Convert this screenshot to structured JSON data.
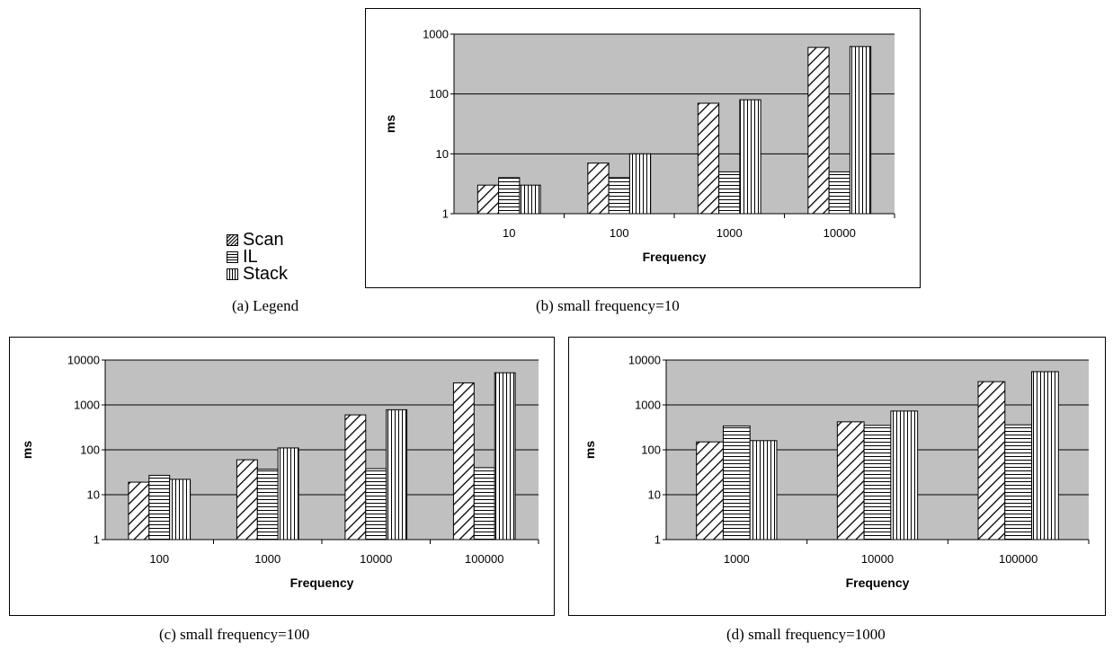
{
  "legend": {
    "items": [
      {
        "label": "Scan",
        "pattern": "diagonal"
      },
      {
        "label": "IL",
        "pattern": "horizontal"
      },
      {
        "label": "Stack",
        "pattern": "vertical"
      }
    ]
  },
  "captions": {
    "a": "(a) Legend",
    "b": "(b) small frequency=10",
    "c": "(c) small frequency=100",
    "d": "(d) small frequency=1000"
  },
  "colors": {
    "plot_background": "#c0c0c0",
    "bar_fill": "#ffffff",
    "stroke": "#000000"
  },
  "chart_data": [
    {
      "type": "bar",
      "y_scale": "log",
      "categories": [
        "10",
        "100",
        "1000",
        "10000"
      ],
      "series": [
        {
          "name": "Scan",
          "values": [
            3,
            7,
            70,
            600
          ]
        },
        {
          "name": "IL",
          "values": [
            4,
            4,
            5,
            5
          ]
        },
        {
          "name": "Stack",
          "values": [
            3,
            10,
            80,
            620
          ]
        }
      ],
      "xlabel": "Frequency",
      "ylabel": "ms",
      "ylim": [
        1,
        1000
      ],
      "yticks": [
        "1",
        "10",
        "100",
        "1000"
      ],
      "grid": true,
      "caption": "(b) small frequency=10"
    },
    {
      "type": "bar",
      "y_scale": "log",
      "categories": [
        "100",
        "1000",
        "10000",
        "100000"
      ],
      "series": [
        {
          "name": "Scan",
          "values": [
            19,
            60,
            600,
            3100
          ]
        },
        {
          "name": "IL",
          "values": [
            27,
            37,
            38,
            40
          ]
        },
        {
          "name": "Stack",
          "values": [
            22,
            110,
            780,
            5200
          ]
        }
      ],
      "xlabel": "Frequency",
      "ylabel": "ms",
      "ylim": [
        1,
        10000
      ],
      "yticks": [
        "1",
        "10",
        "100",
        "1000",
        "10000"
      ],
      "grid": true,
      "caption": "(c) small frequency=100"
    },
    {
      "type": "bar",
      "y_scale": "log",
      "categories": [
        "1000",
        "10000",
        "100000"
      ],
      "series": [
        {
          "name": "Scan",
          "values": [
            150,
            420,
            3300
          ]
        },
        {
          "name": "IL",
          "values": [
            340,
            350,
            360
          ]
        },
        {
          "name": "Stack",
          "values": [
            160,
            730,
            5500
          ]
        }
      ],
      "xlabel": "Frequency",
      "ylabel": "ms",
      "ylim": [
        1,
        10000
      ],
      "yticks": [
        "1",
        "10",
        "100",
        "1000",
        "10000"
      ],
      "grid": true,
      "caption": "(d) small frequency=1000"
    }
  ]
}
